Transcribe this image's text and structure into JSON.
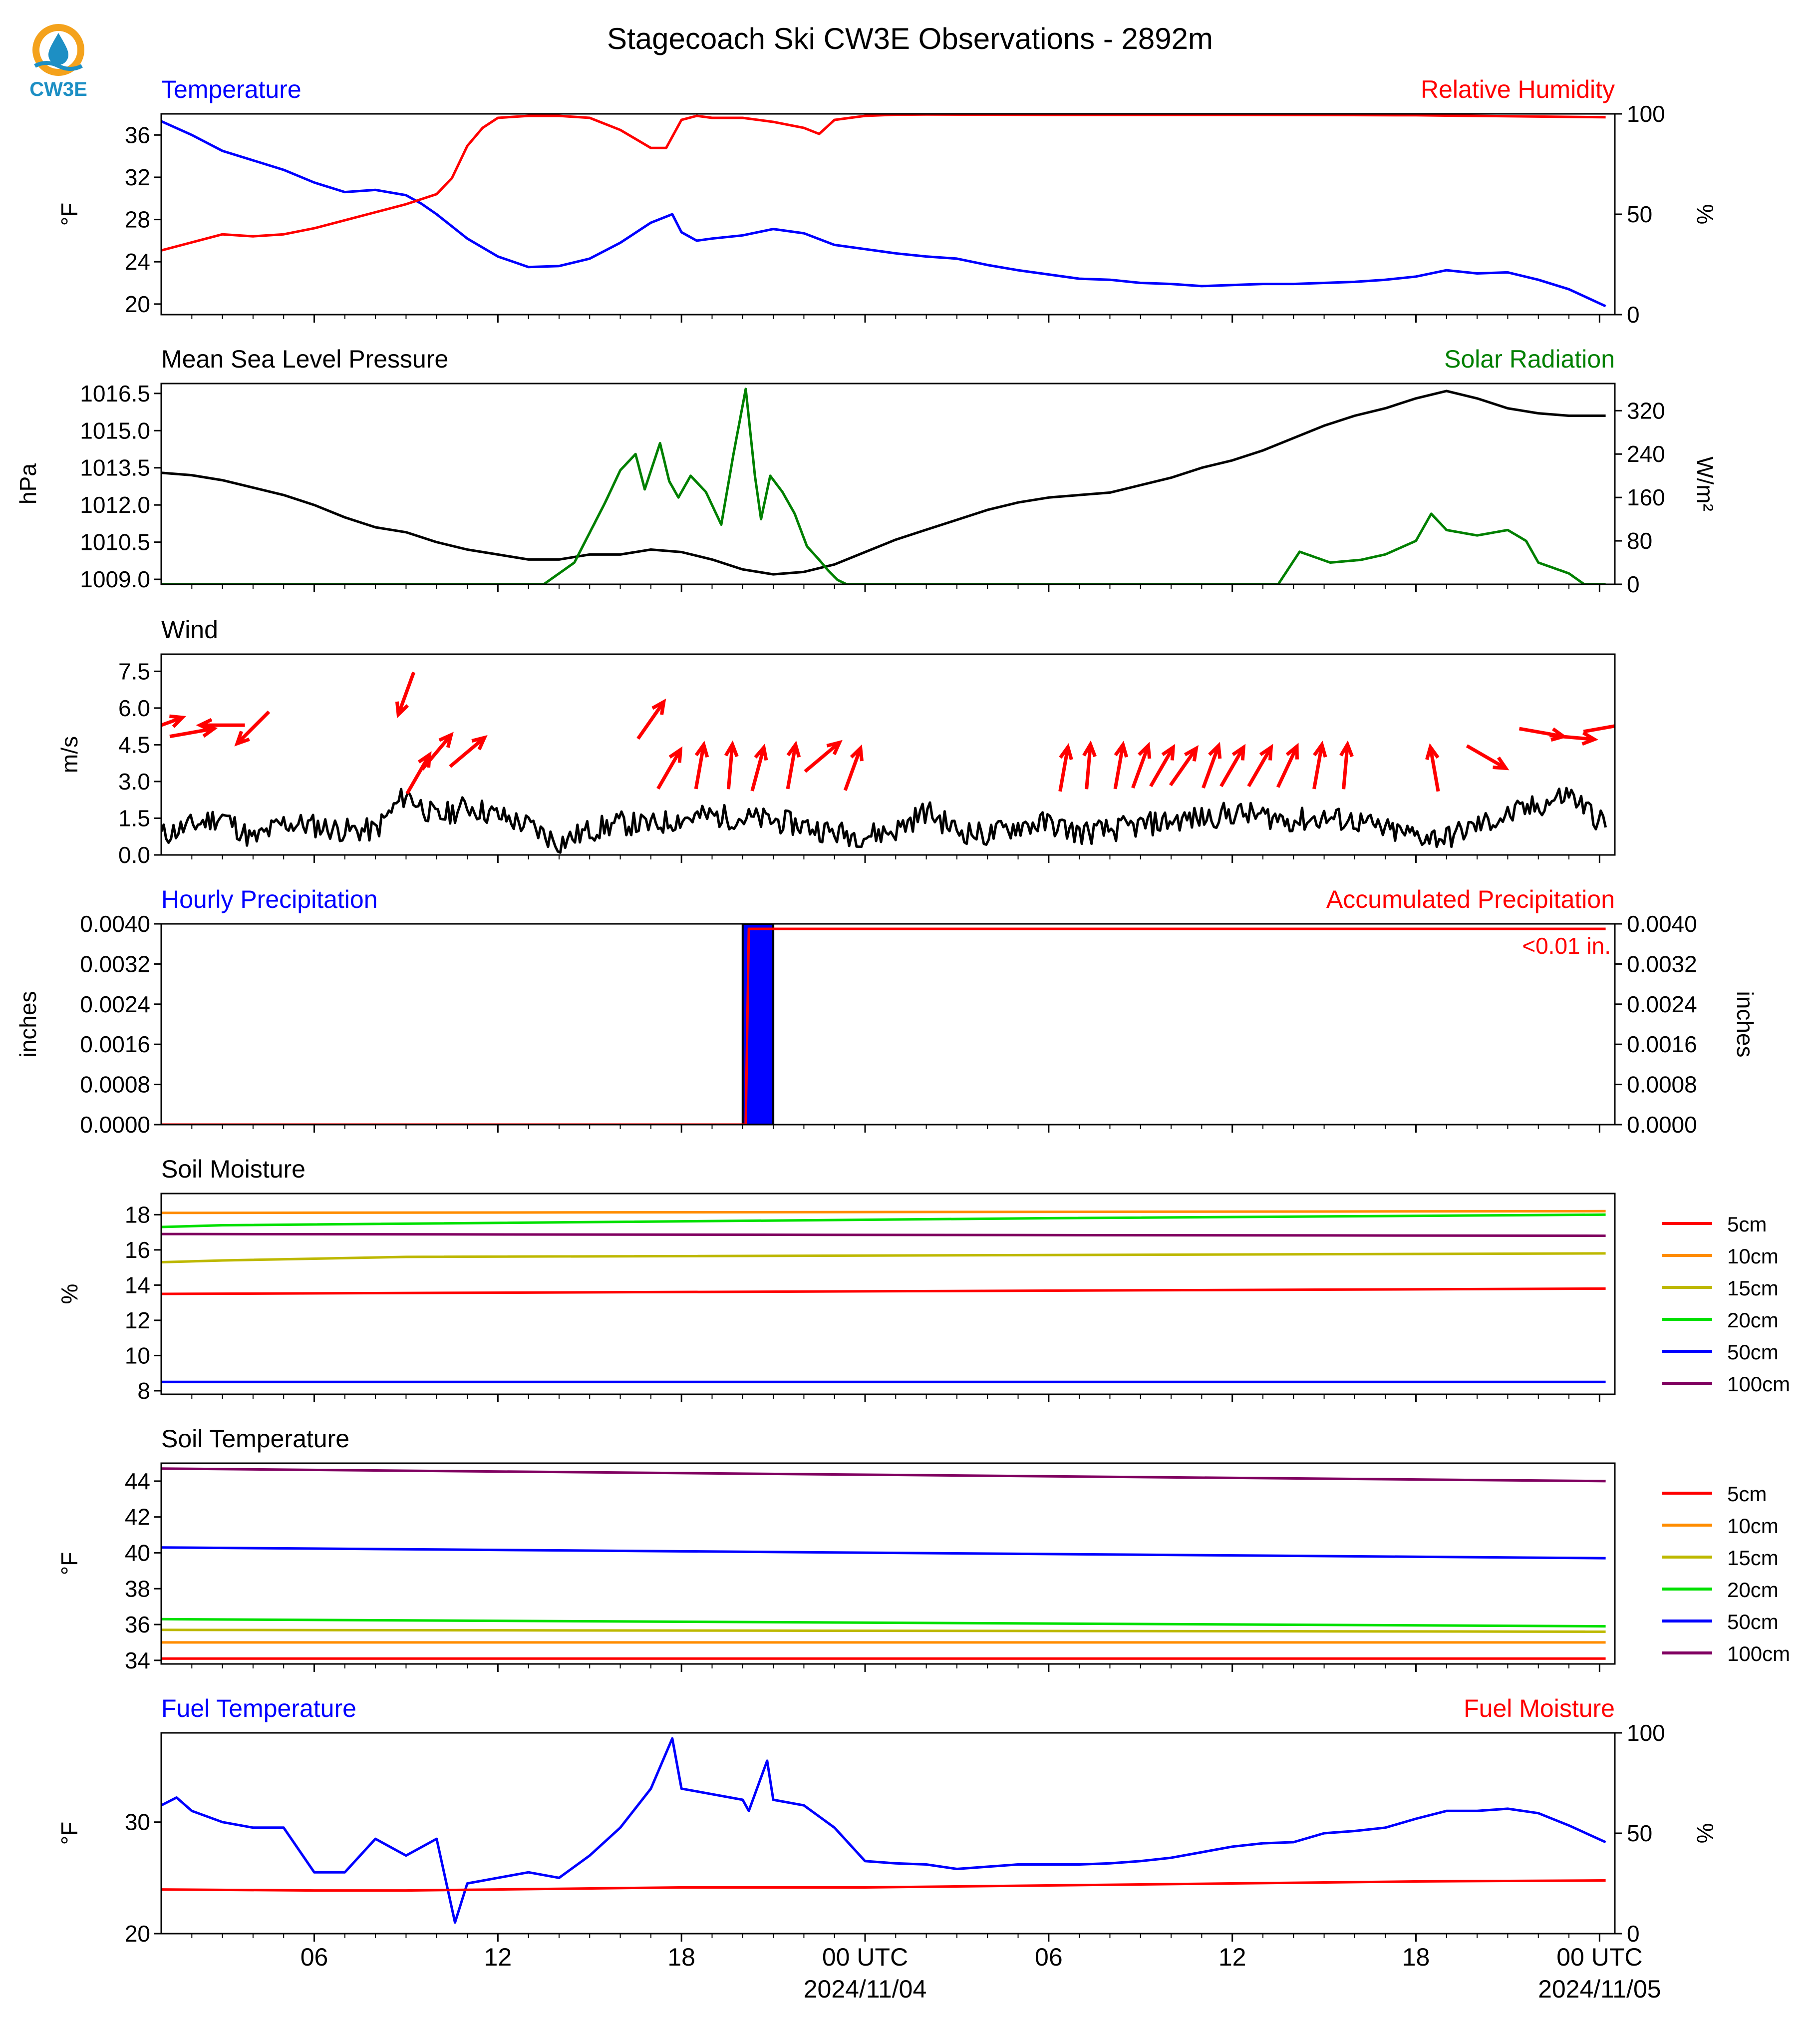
{
  "title": "Stagecoach Ski CW3E Observations - 2892m",
  "logo": {
    "text": "CW3E",
    "icon": "cw3e-water-drop-logo",
    "colors": [
      "#f4a21c",
      "#1d8fc4"
    ]
  },
  "x_axis": {
    "tick_labels": [
      "06",
      "12",
      "18",
      "00 UTC",
      "06",
      "12",
      "18",
      "00 UTC"
    ],
    "tick_hours": [
      6,
      12,
      18,
      24,
      30,
      36,
      42,
      48
    ],
    "date_labels": [
      "2024/11/04",
      "2024/11/05"
    ],
    "date_hours": [
      24,
      48
    ],
    "range_hours": [
      1,
      48.5
    ]
  },
  "colors": {
    "blue": "#0000ff",
    "red": "#ff0000",
    "green": "#008000",
    "black": "#000000"
  },
  "chart_data": [
    {
      "type": "line",
      "left_title": "Temperature",
      "right_title": "Relative Humidity",
      "ylabel": "°F",
      "ylabel_right": "%",
      "ylim": [
        19,
        38
      ],
      "yticks": [
        "20",
        "24",
        "28",
        "32",
        "36"
      ],
      "ylim_right": [
        0,
        100
      ],
      "yticks_right": [
        "0",
        "50",
        "100"
      ],
      "series": [
        {
          "axis": "left",
          "color": "#0000ff",
          "x": [
            1,
            2,
            3,
            4,
            5,
            6,
            7,
            8,
            9,
            9.5,
            10,
            11,
            12,
            13,
            14,
            15,
            16,
            17,
            17.7,
            18,
            18.5,
            19,
            20,
            21,
            22,
            23,
            24,
            25,
            26,
            27,
            28,
            29,
            30,
            31,
            32,
            33,
            34,
            35,
            36,
            37,
            38,
            39,
            40,
            41,
            42,
            43,
            44,
            45,
            46,
            47,
            48.2
          ],
          "y": [
            37.3,
            36,
            34.5,
            33.6,
            32.7,
            31.5,
            30.6,
            30.8,
            30.3,
            29.5,
            28.5,
            26.2,
            24.5,
            23.5,
            23.6,
            24.3,
            25.8,
            27.7,
            28.5,
            26.8,
            26,
            26.2,
            26.5,
            27.1,
            26.7,
            25.6,
            25.2,
            24.8,
            24.5,
            24.3,
            23.7,
            23.2,
            22.8,
            22.4,
            22.3,
            22,
            21.9,
            21.7,
            21.8,
            21.9,
            21.9,
            22,
            22.1,
            22.3,
            22.6,
            23.2,
            22.9,
            23,
            22.3,
            21.4,
            19.8
          ]
        },
        {
          "axis": "right",
          "color": "#ff0000",
          "x": [
            1,
            2,
            3,
            4,
            5,
            6,
            7,
            8,
            9,
            10,
            10.5,
            11,
            11.5,
            12,
            13,
            14,
            15,
            16,
            17,
            17.5,
            18,
            18.5,
            19,
            20,
            21,
            22,
            22.5,
            23,
            24,
            25,
            26,
            30,
            36,
            42,
            48.2
          ],
          "y": [
            32,
            36,
            40,
            39,
            40,
            43,
            47,
            51,
            55,
            60,
            68,
            84,
            93,
            98,
            99,
            99,
            98,
            92,
            83,
            83,
            97,
            99,
            98,
            98,
            96,
            93,
            90,
            97,
            99,
            99.6,
            99.7,
            99.5,
            99.5,
            99.3,
            98.3
          ]
        }
      ]
    },
    {
      "type": "line",
      "left_title": "Mean Sea Level Pressure",
      "right_title": "Solar Radiation",
      "ylabel": "hPa",
      "ylabel_right": "W/m²",
      "ylim": [
        1008.8,
        1016.9
      ],
      "yticks": [
        "1009.0",
        "1010.5",
        "1012.0",
        "1013.5",
        "1015.0",
        "1016.5"
      ],
      "ylim_right": [
        0,
        370
      ],
      "yticks_right": [
        "0",
        "80",
        "160",
        "240",
        "320"
      ],
      "series": [
        {
          "axis": "left",
          "color": "#000000",
          "x": [
            1,
            2,
            3,
            4,
            5,
            6,
            7,
            8,
            9,
            10,
            11,
            12,
            13,
            14,
            15,
            16,
            17,
            18,
            19,
            20,
            21,
            22,
            23,
            24,
            25,
            26,
            27,
            28,
            29,
            30,
            31,
            32,
            33,
            34,
            35,
            36,
            37,
            38,
            39,
            40,
            41,
            42,
            43,
            44,
            45,
            46,
            47,
            48.2
          ],
          "y": [
            1013.3,
            1013.2,
            1013.0,
            1012.7,
            1012.4,
            1012.0,
            1011.5,
            1011.1,
            1010.9,
            1010.5,
            1010.2,
            1010.0,
            1009.8,
            1009.8,
            1010.0,
            1010.0,
            1010.2,
            1010.1,
            1009.8,
            1009.4,
            1009.2,
            1009.3,
            1009.6,
            1010.1,
            1010.6,
            1011.0,
            1011.4,
            1011.8,
            1012.1,
            1012.3,
            1012.4,
            1012.5,
            1012.8,
            1013.1,
            1013.5,
            1013.8,
            1014.2,
            1014.7,
            1015.2,
            1015.6,
            1015.9,
            1016.3,
            1016.6,
            1016.3,
            1015.9,
            1015.7,
            1015.6,
            1015.6
          ]
        },
        {
          "axis": "right",
          "color": "#008000",
          "x": [
            1,
            13.5,
            14.5,
            15.5,
            16,
            16.5,
            16.8,
            17.3,
            17.6,
            17.9,
            18.3,
            18.8,
            19.3,
            19.7,
            20.1,
            20.4,
            20.6,
            20.9,
            21.3,
            21.7,
            22.1,
            22.5,
            22.8,
            23.1,
            23.4,
            23.8,
            37.5,
            38.2,
            39.2,
            40.2,
            41,
            42,
            42.5,
            43,
            44,
            45,
            45.6,
            46,
            47,
            47.5,
            48.2
          ],
          "y": [
            0,
            0,
            40,
            150,
            210,
            240,
            175,
            260,
            190,
            160,
            200,
            170,
            110,
            240,
            360,
            200,
            120,
            200,
            170,
            130,
            70,
            45,
            25,
            8,
            0,
            0,
            0,
            60,
            40,
            45,
            55,
            80,
            130,
            100,
            90,
            100,
            80,
            40,
            20,
            0,
            0
          ]
        }
      ]
    },
    {
      "type": "line",
      "left_title": "Wind",
      "ylabel": "m/s",
      "ylim": [
        0,
        8.2
      ],
      "yticks": [
        "0.0",
        "1.5",
        "3.0",
        "4.5",
        "6.0",
        "7.5"
      ],
      "series": [
        {
          "color": "#000000",
          "name": "",
          "x": [
            1,
            2,
            3,
            4,
            5,
            6,
            7,
            8,
            9,
            10,
            11,
            12,
            13,
            14,
            15,
            16,
            17,
            18,
            19,
            20,
            21,
            22,
            23,
            24,
            25,
            26,
            27,
            28,
            29,
            30,
            31,
            32,
            33,
            34,
            35,
            36,
            37,
            38,
            39,
            40,
            41,
            42,
            43,
            44,
            45,
            46,
            47,
            48.2
          ],
          "y": [
            0.8,
            1.2,
            1.6,
            0.6,
            1.3,
            1.2,
            1.0,
            1.0,
            2.5,
            1.5,
            2.0,
            1.6,
            1.2,
            0.5,
            1.0,
            1.3,
            1.2,
            1.5,
            1.6,
            1.5,
            1.4,
            1.2,
            0.9,
            0.8,
            1.0,
            1.8,
            1.0,
            0.8,
            1.2,
            1.3,
            0.9,
            1.0,
            1.2,
            1.4,
            1.5,
            1.7,
            1.6,
            1.4,
            1.5,
            1.4,
            1.0,
            0.8,
            0.7,
            1.2,
            1.6,
            2.0,
            2.5,
            1.2
          ]
        },
        {
          "kind": "wind-barbs",
          "color": "#ff0000",
          "name": "",
          "hours": [
            1,
            2,
            3,
            4,
            9,
            9.4,
            10,
            11,
            17,
            17.6,
            18.6,
            19.6,
            20.5,
            21.6,
            22.6,
            23.6,
            30.5,
            31.3,
            32.3,
            33,
            33.7,
            34.4,
            35.3,
            36,
            36.9,
            37.8,
            38.8,
            39.7,
            42.6,
            44.3,
            46.1,
            47.1,
            48.2
          ],
          "direction_deg": [
            250,
            260,
            90,
            45,
            20,
            210,
            220,
            230,
            215,
            210,
            190,
            185,
            195,
            190,
            230,
            200,
            190,
            185,
            190,
            200,
            210,
            215,
            200,
            210,
            210,
            205,
            190,
            185,
            170,
            300,
            280,
            275,
            260
          ],
          "speed": [
            5.3,
            5.0,
            5.3,
            5.2,
            6.6,
            3.3,
            4.2,
            4.2,
            5.5,
            3.5,
            3.6,
            3.6,
            3.5,
            3.6,
            4.0,
            3.5,
            3.5,
            3.6,
            3.6,
            3.6,
            3.6,
            3.6,
            3.6,
            3.6,
            3.6,
            3.6,
            3.6,
            3.6,
            3.5,
            4.0,
            5.0,
            4.8,
            5.2
          ]
        }
      ]
    },
    {
      "type": "bar",
      "left_title": "Hourly Precipitation",
      "right_title": "Accumulated Precipitation",
      "ylabel": "inches",
      "ylabel_right": "inches",
      "ylim": [
        0,
        0.004
      ],
      "yticks": [
        "0.0000",
        "0.0008",
        "0.0016",
        "0.0024",
        "0.0032",
        "0.0040"
      ],
      "yticks_right": [
        "0.0000",
        "0.0008",
        "0.0016",
        "0.0024",
        "0.0032",
        "0.0040"
      ],
      "annotation": "<0.01 in.",
      "series": [
        {
          "kind": "bars",
          "color": "#0000ff",
          "x": [
            20.5
          ],
          "width": 1,
          "y": [
            0.004
          ]
        },
        {
          "kind": "accumulated",
          "color": "#ff0000",
          "x": [
            1,
            20.1,
            20.2,
            48.2
          ],
          "y": [
            0,
            0,
            0.0039,
            0.0039
          ]
        }
      ]
    },
    {
      "type": "line",
      "left_title": "Soil Moisture",
      "ylabel": "%",
      "ylim": [
        7.8,
        19.2
      ],
      "yticks": [
        "8",
        "10",
        "12",
        "14",
        "16",
        "18"
      ],
      "legend": [
        "5cm",
        "10cm",
        "15cm",
        "20cm",
        "50cm",
        "100cm"
      ],
      "series": [
        {
          "name": "5cm",
          "color": "#ff0000",
          "x": [
            1,
            48.2
          ],
          "y": [
            13.5,
            13.8
          ]
        },
        {
          "name": "10cm",
          "color": "#ff8c00",
          "x": [
            1,
            48.2
          ],
          "y": [
            18.1,
            18.2
          ]
        },
        {
          "name": "15cm",
          "color": "#bdb800",
          "x": [
            1,
            3,
            9,
            48.2
          ],
          "y": [
            15.3,
            15.4,
            15.6,
            15.8
          ]
        },
        {
          "name": "20cm",
          "color": "#00e000",
          "x": [
            1,
            3,
            30,
            48.2
          ],
          "y": [
            17.3,
            17.4,
            17.8,
            18.0
          ]
        },
        {
          "name": "50cm",
          "color": "#0000ff",
          "x": [
            1,
            48.2
          ],
          "y": [
            8.5,
            8.5
          ]
        },
        {
          "name": "100cm",
          "color": "#800060",
          "x": [
            1,
            48.2
          ],
          "y": [
            16.9,
            16.8
          ]
        }
      ]
    },
    {
      "type": "line",
      "left_title": "Soil Temperature",
      "ylabel": "°F",
      "ylim": [
        33.8,
        45.0
      ],
      "yticks": [
        "34",
        "36",
        "38",
        "40",
        "42",
        "44"
      ],
      "legend": [
        "5cm",
        "10cm",
        "15cm",
        "20cm",
        "50cm",
        "100cm"
      ],
      "series": [
        {
          "name": "5cm",
          "color": "#ff0000",
          "x": [
            1,
            48.2
          ],
          "y": [
            34.1,
            34.1
          ]
        },
        {
          "name": "10cm",
          "color": "#ff8c00",
          "x": [
            1,
            48.2
          ],
          "y": [
            35.0,
            35.0
          ]
        },
        {
          "name": "15cm",
          "color": "#bdb800",
          "x": [
            1,
            48.2
          ],
          "y": [
            35.7,
            35.6
          ]
        },
        {
          "name": "20cm",
          "color": "#00e000",
          "x": [
            1,
            48.2
          ],
          "y": [
            36.3,
            35.9
          ]
        },
        {
          "name": "50cm",
          "color": "#0000ff",
          "x": [
            1,
            48.2
          ],
          "y": [
            40.3,
            39.7
          ]
        },
        {
          "name": "100cm",
          "color": "#800060",
          "x": [
            1,
            48.2
          ],
          "y": [
            44.7,
            44.0
          ]
        }
      ]
    },
    {
      "type": "line",
      "left_title": "Fuel Temperature",
      "right_title": "Fuel Moisture",
      "ylabel": "°F",
      "ylabel_right": "%",
      "ylim": [
        20,
        38
      ],
      "yticks": [
        "20",
        "30"
      ],
      "ylim_right": [
        0,
        100
      ],
      "yticks_right": [
        "0",
        "50",
        "100"
      ],
      "series": [
        {
          "axis": "left",
          "color": "#0000ff",
          "x": [
            1,
            1.5,
            2,
            3,
            4,
            5,
            6,
            7,
            8,
            9,
            10,
            10.6,
            11,
            12,
            13,
            14,
            15,
            16,
            17,
            17.7,
            18,
            19,
            20,
            20.2,
            20.8,
            21,
            22,
            23,
            24,
            25,
            26,
            27,
            28,
            29,
            30,
            31,
            32,
            33,
            34,
            35,
            36,
            37,
            38,
            39,
            40,
            41,
            42,
            43,
            44,
            45,
            46,
            47,
            48.2
          ],
          "y": [
            31.5,
            32.2,
            31,
            30,
            29.5,
            29.5,
            25.5,
            25.5,
            28.5,
            27,
            28.5,
            21,
            24.5,
            25,
            25.5,
            25,
            27,
            29.5,
            33,
            37.5,
            33,
            32.5,
            32,
            31,
            35.5,
            32,
            31.5,
            29.5,
            26.5,
            26.3,
            26.2,
            25.8,
            26,
            26.2,
            26.2,
            26.2,
            26.3,
            26.5,
            26.8,
            27.3,
            27.8,
            28.1,
            28.2,
            29.0,
            29.2,
            29.5,
            30.3,
            31.0,
            31.0,
            31.2,
            30.8,
            29.7,
            28.2
          ]
        },
        {
          "axis": "right",
          "color": "#ff0000",
          "x": [
            1,
            6,
            9,
            12,
            18,
            24,
            30,
            36,
            42,
            48.2
          ],
          "y": [
            22,
            21.5,
            21.5,
            22,
            23,
            23,
            24,
            25,
            26,
            26.5
          ]
        }
      ]
    }
  ]
}
